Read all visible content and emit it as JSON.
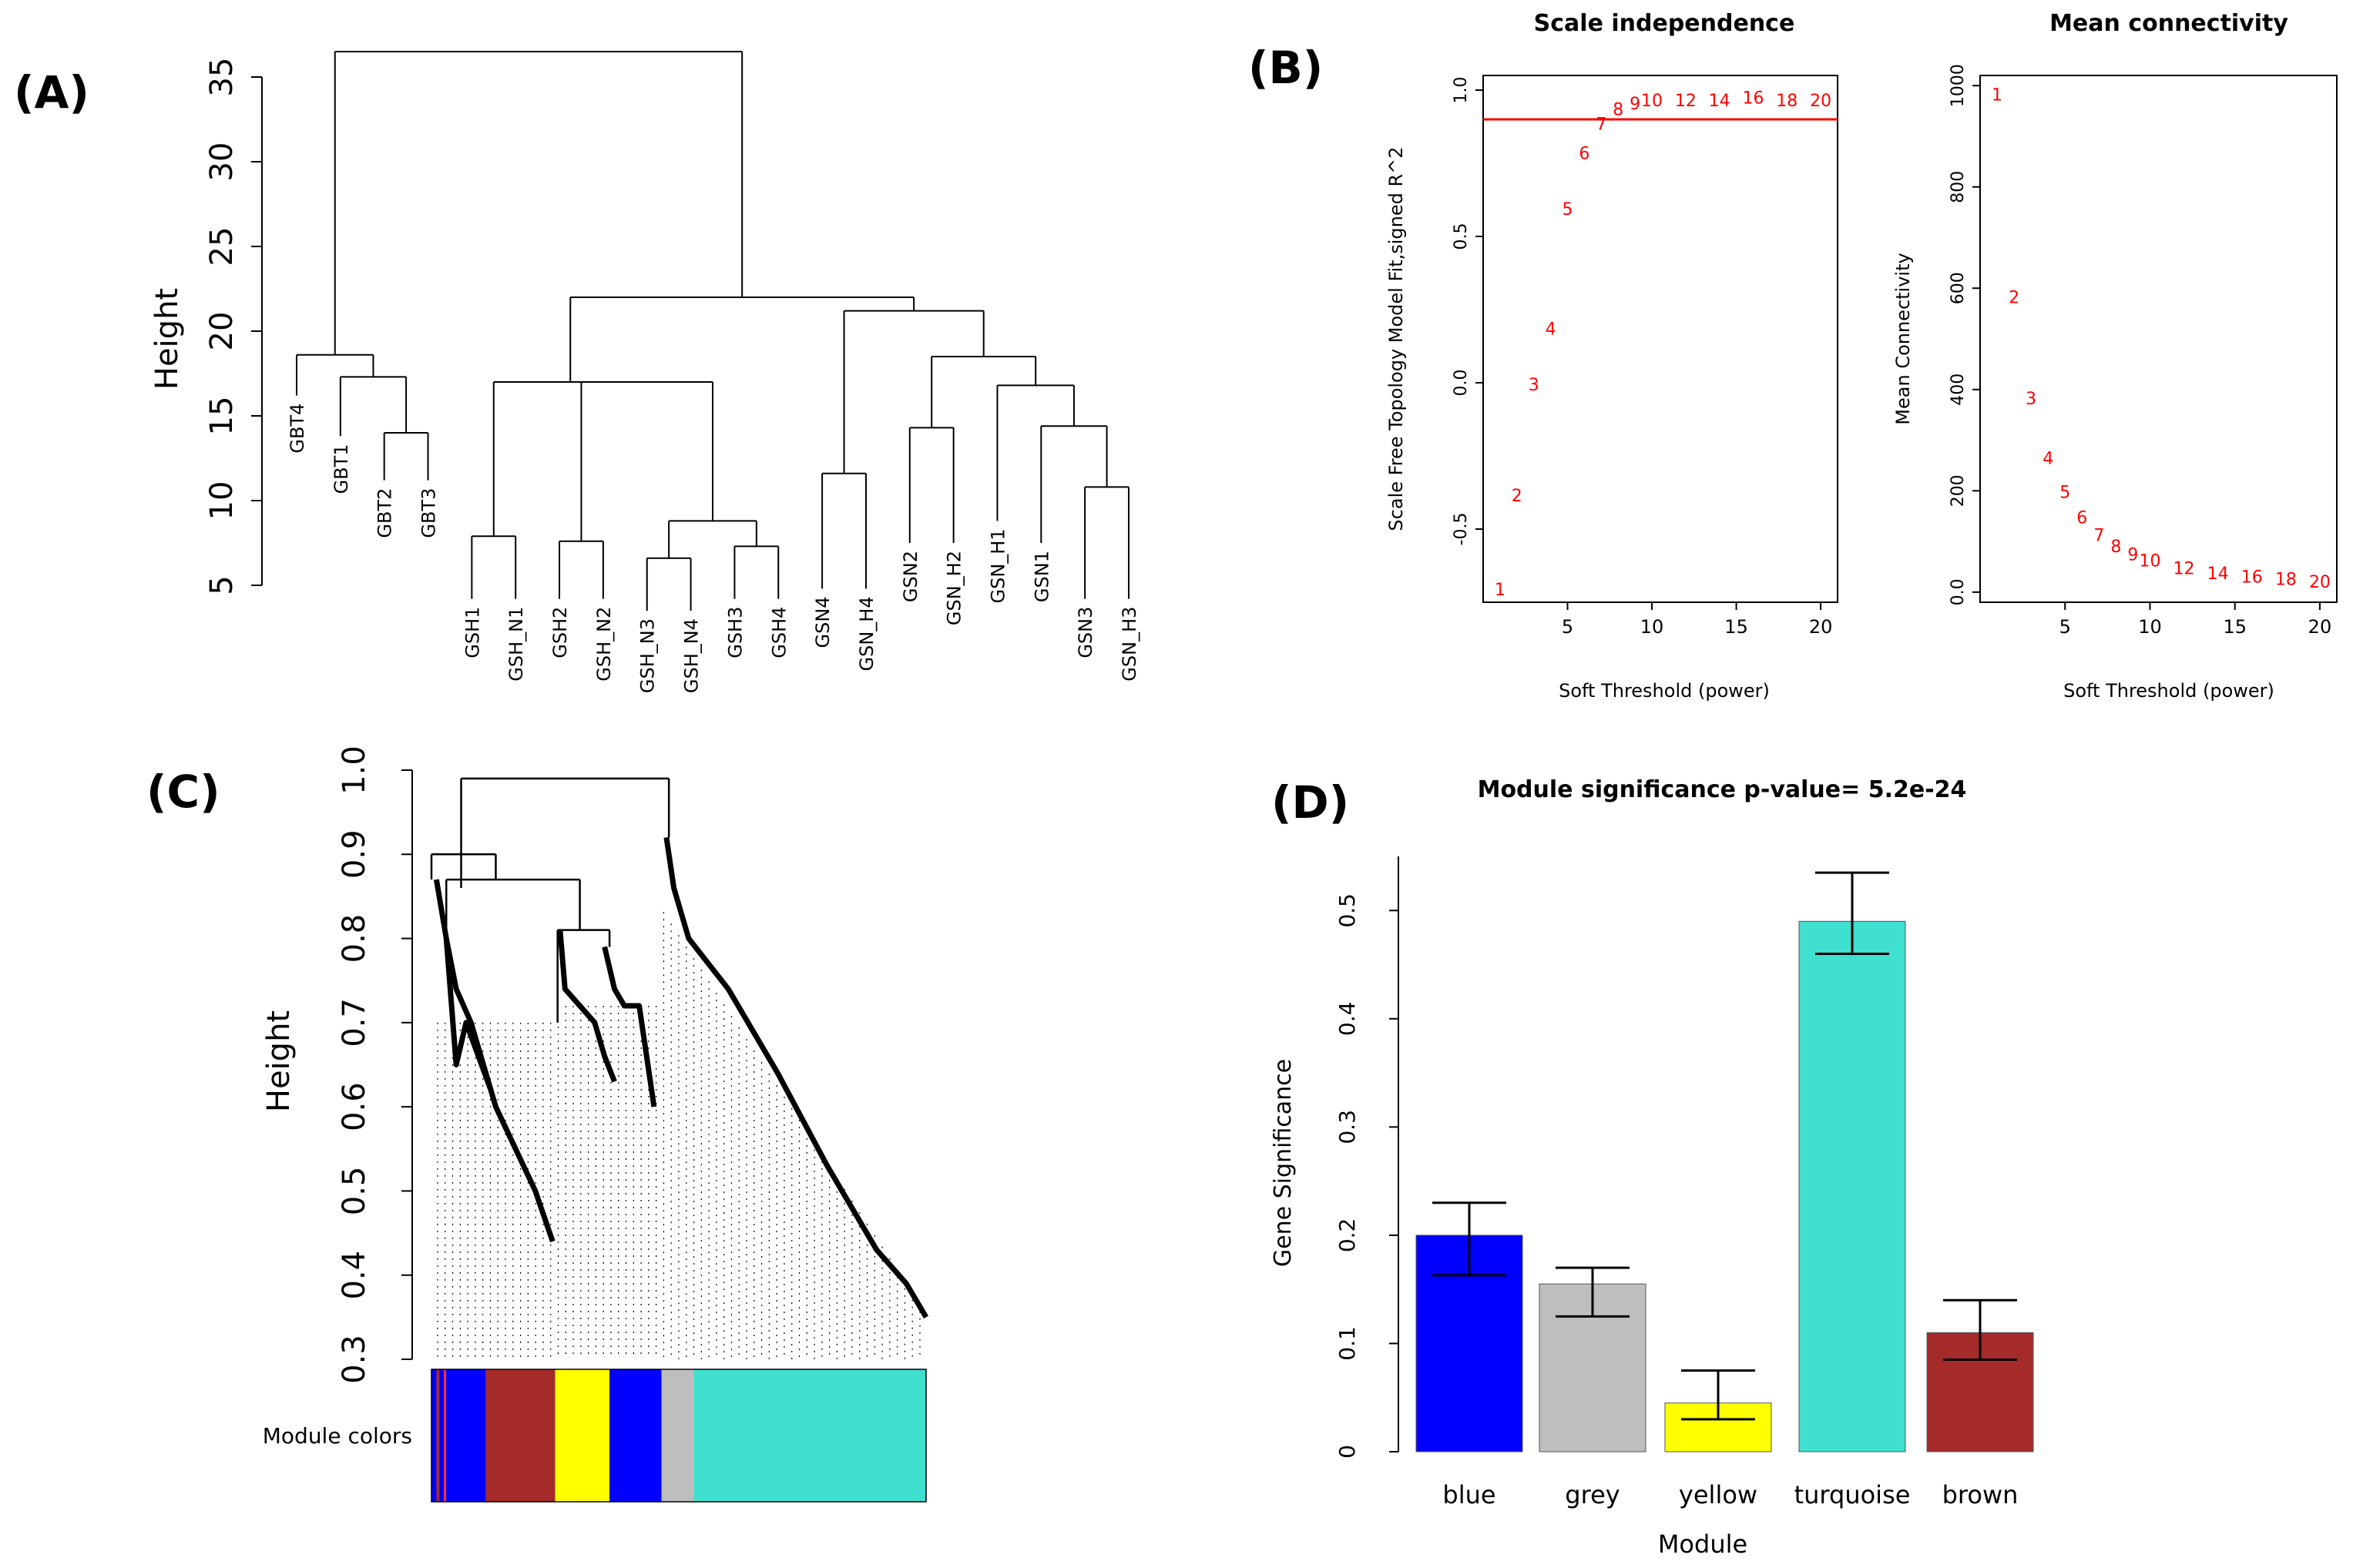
{
  "chart_data": [
    {
      "panel": "(A)",
      "type": "dendrogram",
      "ylabel": "Height",
      "ylim": [
        5,
        35
      ],
      "yticks": [
        5,
        10,
        15,
        20,
        25,
        30,
        35
      ],
      "leaves": [
        "GBT4",
        "GBT1",
        "GBT2",
        "GBT3",
        "GSH1",
        "GSH_N1",
        "GSH2",
        "GSH_N2",
        "GSH_N3",
        "GSH_N4",
        "GSH3",
        "GSH4",
        "GSN4",
        "GSN_H4",
        "GSN2",
        "GSN_H2",
        "GSN_H1",
        "GSN1",
        "GSN3",
        "GSN_H3"
      ],
      "leaf_tip_heights": [
        16.2,
        13.8,
        11.2,
        11.2,
        4.2,
        4.2,
        4.2,
        4.2,
        3.5,
        3.5,
        4.2,
        4.2,
        4.8,
        4.8,
        7.5,
        7.5,
        8.8,
        7.5,
        4.2,
        4.2
      ],
      "merges": [
        {
          "left": 2,
          "right": 3,
          "height": 14.0
        },
        {
          "left": 1,
          "right": "GBT2+GBT3",
          "height": 17.3
        },
        {
          "left": 0,
          "right": "GBT1-3",
          "height": 18.6
        },
        {
          "left": 4,
          "right": 5,
          "height": 7.9
        },
        {
          "left": 6,
          "right": 7,
          "height": 7.6
        },
        {
          "left": 8,
          "right": 9,
          "height": 6.6
        },
        {
          "left": 10,
          "right": 11,
          "height": 7.3
        },
        {
          "left": "GSH_N3+GSH_N4",
          "right": "GSH3+GSH4",
          "height": 8.8
        },
        {
          "left": "GSH2+GSH_N2",
          "right": "GSH_N3..GSH4",
          "height": 17.0
        },
        {
          "left": "GSH1+GSH_N1",
          "right": "GSH2..GSH4",
          "height": 17.0
        },
        {
          "left": 12,
          "right": 13,
          "height": 11.6
        },
        {
          "left": 14,
          "right": 15,
          "height": 14.3
        },
        {
          "left": 18,
          "right": 19,
          "height": 10.8
        },
        {
          "left": 17,
          "right": "GSN3+GSN_H3",
          "height": 14.4
        },
        {
          "left": 16,
          "right": "GSN1..GSN_H3",
          "height": 16.8
        },
        {
          "left": "GSN2+GSN_H2",
          "right": "GSN_H1..GSN_H3",
          "height": 18.5
        },
        {
          "left": "GSN4+GSN_H4",
          "right": "GSN2..GSN_H3",
          "height": 21.2
        },
        {
          "left": "GSH cluster",
          "right": "GSN cluster",
          "height": 22.0
        },
        {
          "left": "GBT cluster",
          "right": "GSH+GSN cluster",
          "height": 36.5
        }
      ]
    },
    {
      "panel": "(B)",
      "type": "scatter",
      "title": "Scale independence",
      "xlabel": "Soft Threshold (power)",
      "ylabel": "Scale Free Topology Model Fit,signed R^2",
      "xlim": [
        0,
        21
      ],
      "ylim": [
        -0.75,
        1.05
      ],
      "xticks": [
        5,
        10,
        15,
        20
      ],
      "yticks": [
        -0.5,
        0.0,
        0.5,
        1.0
      ],
      "cutoff_line": 0.9,
      "points": [
        {
          "x": 1,
          "y": -0.71,
          "label": "1"
        },
        {
          "x": 2,
          "y": -0.39,
          "label": "2"
        },
        {
          "x": 3,
          "y": -0.01,
          "label": "3"
        },
        {
          "x": 4,
          "y": 0.18,
          "label": "4"
        },
        {
          "x": 5,
          "y": 0.59,
          "label": "5"
        },
        {
          "x": 6,
          "y": 0.78,
          "label": "6"
        },
        {
          "x": 7,
          "y": 0.88,
          "label": "7"
        },
        {
          "x": 8,
          "y": 0.93,
          "label": "8"
        },
        {
          "x": 9,
          "y": 0.95,
          "label": "9"
        },
        {
          "x": 10,
          "y": 0.96,
          "label": "10"
        },
        {
          "x": 12,
          "y": 0.96,
          "label": "12"
        },
        {
          "x": 14,
          "y": 0.96,
          "label": "14"
        },
        {
          "x": 16,
          "y": 0.97,
          "label": "16"
        },
        {
          "x": 18,
          "y": 0.96,
          "label": "18"
        },
        {
          "x": 20,
          "y": 0.96,
          "label": "20"
        }
      ]
    },
    {
      "panel": "(B)",
      "type": "scatter",
      "title": "Mean connectivity",
      "xlabel": "Soft Threshold (power)",
      "ylabel": "Mean Connectivity",
      "xlim": [
        0,
        21
      ],
      "ylim": [
        -20,
        1020
      ],
      "xticks": [
        5,
        10,
        15,
        20
      ],
      "yticks": [
        0,
        200,
        400,
        600,
        800,
        1000
      ],
      "points": [
        {
          "x": 1,
          "y": 980,
          "label": "1"
        },
        {
          "x": 2,
          "y": 580,
          "label": "2"
        },
        {
          "x": 3,
          "y": 380,
          "label": "3"
        },
        {
          "x": 4,
          "y": 262,
          "label": "4"
        },
        {
          "x": 5,
          "y": 195,
          "label": "5"
        },
        {
          "x": 6,
          "y": 145,
          "label": "6"
        },
        {
          "x": 7,
          "y": 110,
          "label": "7"
        },
        {
          "x": 8,
          "y": 88,
          "label": "8"
        },
        {
          "x": 9,
          "y": 72,
          "label": "9"
        },
        {
          "x": 10,
          "y": 60,
          "label": "10"
        },
        {
          "x": 12,
          "y": 45,
          "label": "12"
        },
        {
          "x": 14,
          "y": 35,
          "label": "14"
        },
        {
          "x": 16,
          "y": 28,
          "label": "16"
        },
        {
          "x": 18,
          "y": 23,
          "label": "18"
        },
        {
          "x": 20,
          "y": 18,
          "label": "20"
        }
      ]
    },
    {
      "panel": "(C)",
      "type": "dendrogram",
      "ylabel": "Height",
      "ylim": [
        0.3,
        1.0
      ],
      "yticks": [
        0.3,
        0.4,
        0.5,
        0.6,
        0.7,
        0.8,
        0.9,
        1.0
      ],
      "color_bar_label": "Module colors",
      "modules": [
        {
          "name": "blue",
          "color": "#0000ff",
          "fraction_start": 0.0,
          "fraction_end": 0.11
        },
        {
          "name": "brown",
          "color": "#a52a2a",
          "fraction_start": 0.11,
          "fraction_end": 0.25
        },
        {
          "name": "yellow",
          "color": "#ffff00",
          "fraction_start": 0.25,
          "fraction_end": 0.36
        },
        {
          "name": "blue",
          "color": "#0000ff",
          "fraction_start": 0.36,
          "fraction_end": 0.465
        },
        {
          "name": "grey",
          "color": "#bebebe",
          "fraction_start": 0.465,
          "fraction_end": 0.53
        },
        {
          "name": "turquoise",
          "color": "#40e0d0",
          "fraction_start": 0.53,
          "fraction_end": 1.0
        }
      ],
      "branches": [
        {
          "from": 0.0,
          "to": 0.25,
          "top": 0.87,
          "bottom": 0.45
        },
        {
          "from": 0.25,
          "to": 0.46,
          "top": 0.81,
          "bottom": 0.6
        },
        {
          "from": 0.46,
          "to": 1.0,
          "top": 0.92,
          "bottom": 0.35
        }
      ],
      "top_merge": 0.99
    },
    {
      "panel": "(D)",
      "type": "bar",
      "title": "Module significance p-value= 5.2e-24",
      "xlabel": "Module",
      "ylabel": "Gene Significance",
      "categories": [
        "blue",
        "grey",
        "yellow",
        "turquoise",
        "brown"
      ],
      "colors": [
        "#0000ff",
        "#bebebe",
        "#ffff00",
        "#40e0d0",
        "#a52a2a"
      ],
      "values": [
        0.2,
        0.155,
        0.045,
        0.49,
        0.11
      ],
      "error_low": [
        0.163,
        0.125,
        0.03,
        0.46,
        0.085
      ],
      "error_high": [
        0.23,
        0.17,
        0.075,
        0.535,
        0.14
      ],
      "ylim": [
        0,
        0.55
      ],
      "yticks": [
        0,
        0.1,
        0.2,
        0.3,
        0.4,
        0.5
      ],
      "ytick_labels": [
        "0",
        "0.1",
        "0.2",
        "0.3",
        "0.4",
        "0.5"
      ]
    }
  ]
}
